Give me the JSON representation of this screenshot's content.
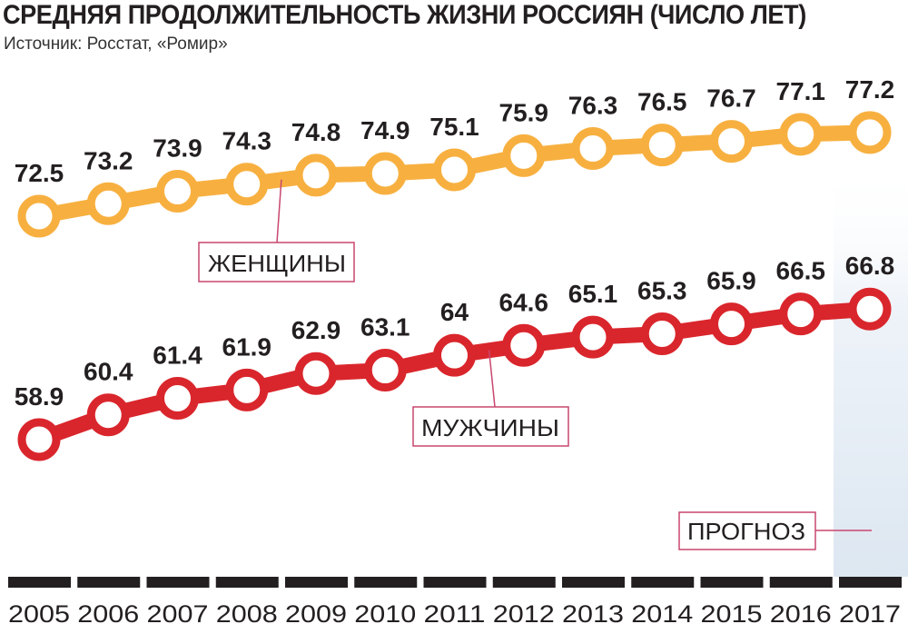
{
  "chart_data": {
    "type": "line",
    "title": "СРЕДНЯЯ ПРОДОЛЖИТЕЛЬНОСТЬ ЖИЗНИ РОССИЯН (ЧИСЛО ЛЕТ)",
    "subtitle": "Источник: Росстат, «Ромир»",
    "x": [
      "2005",
      "2006",
      "2007",
      "2008",
      "2009",
      "2010",
      "2011",
      "2012",
      "2013",
      "2014",
      "2015",
      "2016",
      "2017"
    ],
    "series": [
      {
        "name": "ЖЕНЩИНЫ",
        "color": "#f7b040",
        "values": [
          72.5,
          73.2,
          73.9,
          74.3,
          74.8,
          74.9,
          75.1,
          75.9,
          76.3,
          76.5,
          76.7,
          77.1,
          77.2
        ],
        "labels": [
          "72.5",
          "73.2",
          "73.9",
          "74.3",
          "74.8",
          "74.9",
          "75.1",
          "75.9",
          "76.3",
          "76.5",
          "76.7",
          "77.1",
          "77.2"
        ]
      },
      {
        "name": "МУЖЧИНЫ",
        "color": "#d9262c",
        "values": [
          58.9,
          60.4,
          61.4,
          61.9,
          62.9,
          63.1,
          64,
          64.6,
          65.1,
          65.3,
          65.9,
          66.5,
          66.8
        ],
        "labels": [
          "58.9",
          "60.4",
          "61.4",
          "61.9",
          "62.9",
          "63.1",
          "64",
          "64.6",
          "65.1",
          "65.3",
          "65.9",
          "66.5",
          "66.8"
        ]
      }
    ],
    "forecast": {
      "label": "ПРОГНОЗ",
      "year": "2017"
    },
    "legend": "inline callouts",
    "grid": false
  },
  "colors": {
    "text": "#231f20",
    "callout_border": "#c8476f",
    "axis_bar": "#231f20",
    "forecast_shade": "#e3ecf5"
  }
}
